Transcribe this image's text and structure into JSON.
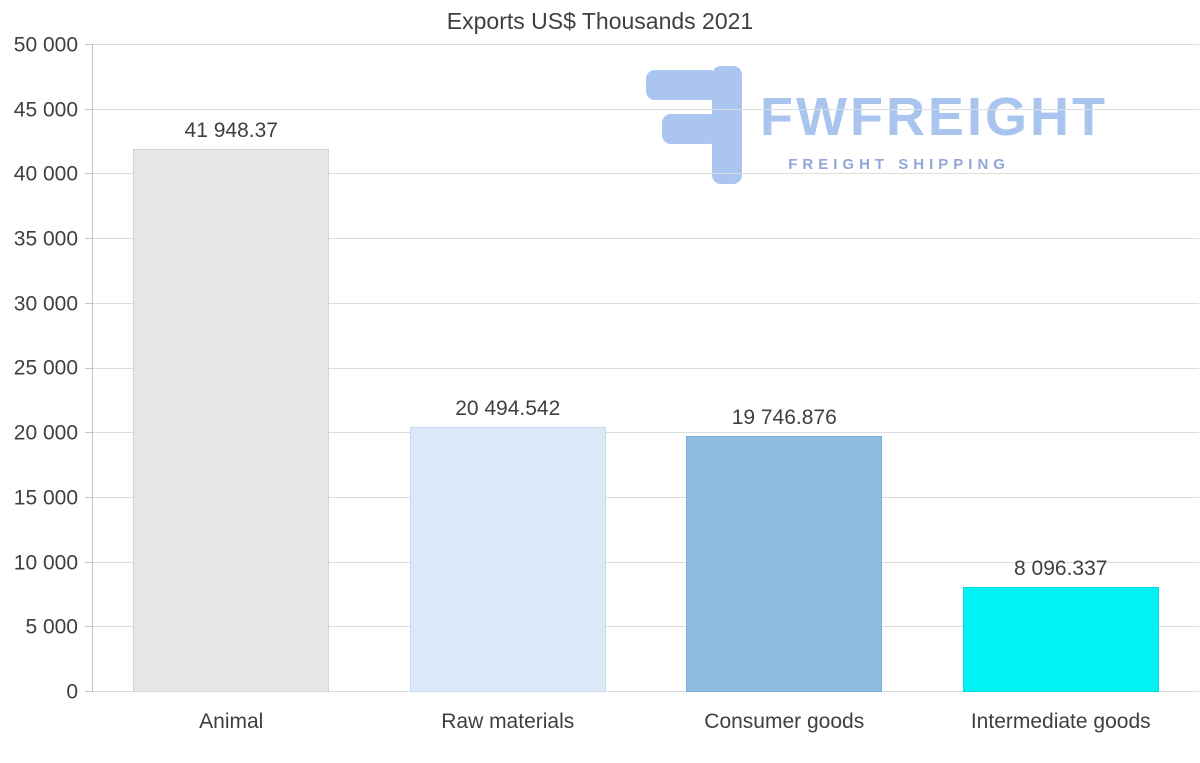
{
  "logo": {
    "name": "FWFREIGHT",
    "tagline": "FREIGHT SHIPPING",
    "name_color": "#a9c4ef",
    "tagline_color": "#93a6d9",
    "icon_color": "#a9c5f0"
  },
  "chart_data": {
    "type": "bar",
    "title": "Exports US$ Thousands 2021",
    "categories": [
      "Animal",
      "Raw materials",
      "Consumer goods",
      "Intermediate goods"
    ],
    "values": [
      41948.37,
      20494.542,
      19746.876,
      8096.337
    ],
    "value_labels": [
      "41 948.37",
      "20 494.542",
      "19 746.876",
      "8 096.337"
    ],
    "bar_colors": [
      "#e7e7e7",
      "#dae8f8",
      "#8fbcdf",
      "#00f2f2"
    ],
    "bar_border_colors": [
      "#d6d6d6",
      "#c7daee",
      "#7fadd2",
      "#00dcdc"
    ],
    "xlabel": "",
    "ylabel": "",
    "ylim": [
      0,
      50000
    ],
    "yticks": [
      0,
      5000,
      10000,
      15000,
      20000,
      25000,
      30000,
      35000,
      40000,
      45000,
      50000
    ],
    "ytick_labels": [
      "0",
      "5 000",
      "10 000",
      "15 000",
      "20 000",
      "25 000",
      "30 000",
      "35 000",
      "40 000",
      "45 000",
      "50 000"
    ],
    "grid": true,
    "legend": false
  }
}
